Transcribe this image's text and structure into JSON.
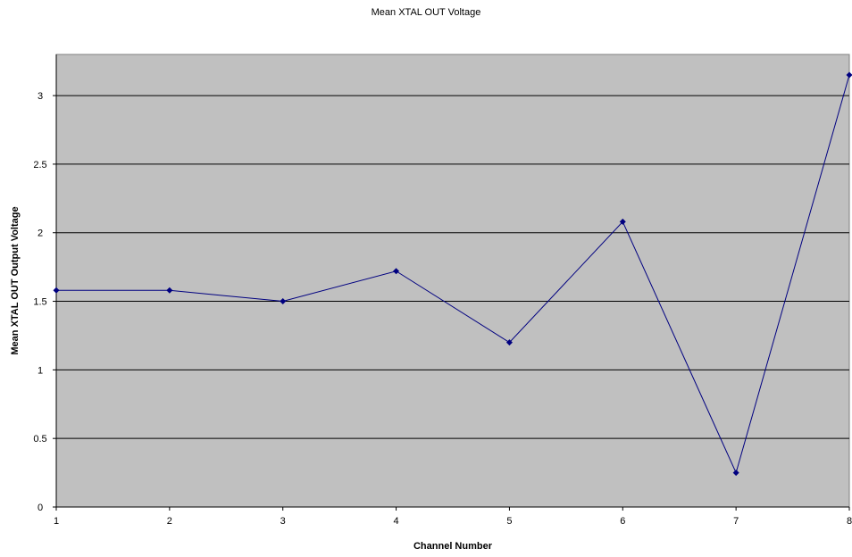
{
  "chart_data": {
    "type": "line",
    "title": "Mean XTAL OUT Voltage",
    "xlabel": "Channel Number",
    "ylabel": "Mean XTAL OUT Output Voltage",
    "x": [
      1,
      2,
      3,
      4,
      5,
      6,
      7,
      8
    ],
    "series": [
      {
        "values": [
          1.58,
          1.58,
          1.5,
          1.72,
          1.2,
          2.08,
          0.25,
          3.15
        ]
      }
    ],
    "xlim": [
      1,
      8
    ],
    "ylim": [
      0,
      3.3
    ],
    "xticks": [
      "1",
      "2",
      "3",
      "4",
      "5",
      "6",
      "7",
      "8"
    ],
    "yticks": [
      "0",
      "0.5",
      "1",
      "1.5",
      "2",
      "2.5",
      "3"
    ],
    "ytick_values": [
      0,
      0.5,
      1,
      1.5,
      2,
      2.5,
      3
    ],
    "grid": "horizontal",
    "legend": "none",
    "colors": {
      "plot_background": "#c0c0c0",
      "line": "#000080",
      "gridline": "#000000"
    }
  }
}
